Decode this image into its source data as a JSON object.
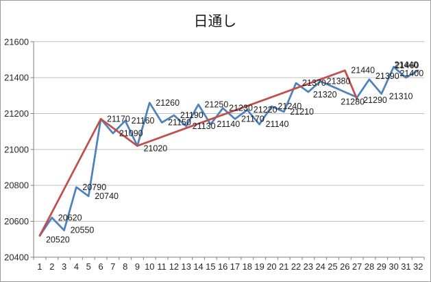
{
  "chart_data": {
    "type": "line",
    "title": "日通し",
    "legend": "none",
    "grid": true,
    "x_ticks": [
      1,
      2,
      3,
      4,
      5,
      6,
      7,
      8,
      9,
      10,
      11,
      12,
      13,
      14,
      15,
      16,
      17,
      18,
      19,
      20,
      21,
      22,
      23,
      24,
      25,
      26,
      27,
      28,
      29,
      30,
      31,
      32
    ],
    "y_axis": {
      "min": 20400,
      "max": 21600,
      "step": 200,
      "tick_labels": [
        "20400",
        "20600",
        "20800",
        "21000",
        "21200",
        "21400",
        "21600"
      ]
    },
    "series": [
      {
        "name": "blue",
        "color": "#4F81BD",
        "x": [
          1,
          2,
          3,
          4,
          5,
          6,
          7,
          8,
          9,
          10,
          11,
          12,
          13,
          14,
          15,
          16,
          17,
          18,
          19,
          20,
          21,
          22,
          23,
          24,
          25,
          26,
          27,
          28,
          29,
          30,
          31,
          32
        ],
        "values": [
          20520,
          20620,
          20550,
          20790,
          20740,
          21170,
          21090,
          21160,
          21020,
          21260,
          21150,
          21190,
          21130,
          21250,
          21140,
          21230,
          21170,
          21220,
          21140,
          21240,
          21210,
          21370,
          21320,
          21380,
          null,
          null,
          21290,
          21390,
          21310,
          21460,
          21400,
          21440
        ],
        "labeled": "all",
        "double_printed_label_x": [
          1,
          6,
          9
        ]
      },
      {
        "name": "red",
        "color": "#C0504D",
        "x": [
          1,
          6,
          9,
          26,
          27
        ],
        "values": [
          20520,
          21170,
          21020,
          21440,
          21280
        ],
        "labeled_x": [
          26,
          27
        ]
      }
    ]
  }
}
